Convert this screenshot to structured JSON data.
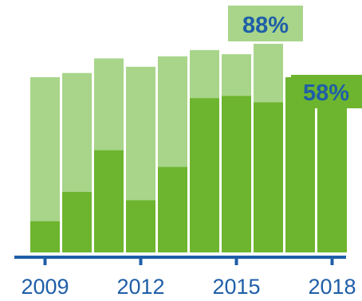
{
  "colors": {
    "background": "#ffffff",
    "light_green": "#a8d58a",
    "dark_green": "#6db52e",
    "axis_blue": "#1f5ea8",
    "label_blue": "#1f5ea8",
    "callout_light": "#a8d58a",
    "callout_dark": "#6db52e"
  },
  "chart_data": {
    "type": "bar",
    "stacked": true,
    "categories": [
      "2009",
      "2010",
      "2011",
      "2012",
      "2013",
      "2014",
      "2015",
      "2016",
      "2017",
      "2018"
    ],
    "series": [
      {
        "values": [
          15,
          29,
          49,
          25,
          41,
          74,
          75,
          72,
          84,
          82
        ]
      },
      {
        "values": [
          69,
          57,
          44,
          64,
          53,
          23,
          20,
          28,
          0,
          0
        ]
      }
    ],
    "totals": [
      84,
      86,
      93,
      89,
      94,
      97,
      95,
      100,
      84,
      82
    ],
    "xtick_labels": [
      {
        "category": "2009",
        "label": "2009"
      },
      {
        "category": "2012",
        "label": "2012"
      },
      {
        "category": "2015",
        "label": "2015"
      },
      {
        "category": "2018",
        "label": "2018"
      }
    ],
    "annotations": [
      {
        "category": "2016",
        "text": "88%",
        "style": "light"
      },
      {
        "category": "2017",
        "text": "58%",
        "style": "dark"
      }
    ],
    "ylim": [
      0,
      100
    ],
    "grid": false,
    "title": "",
    "xlabel": "",
    "ylabel": ""
  }
}
